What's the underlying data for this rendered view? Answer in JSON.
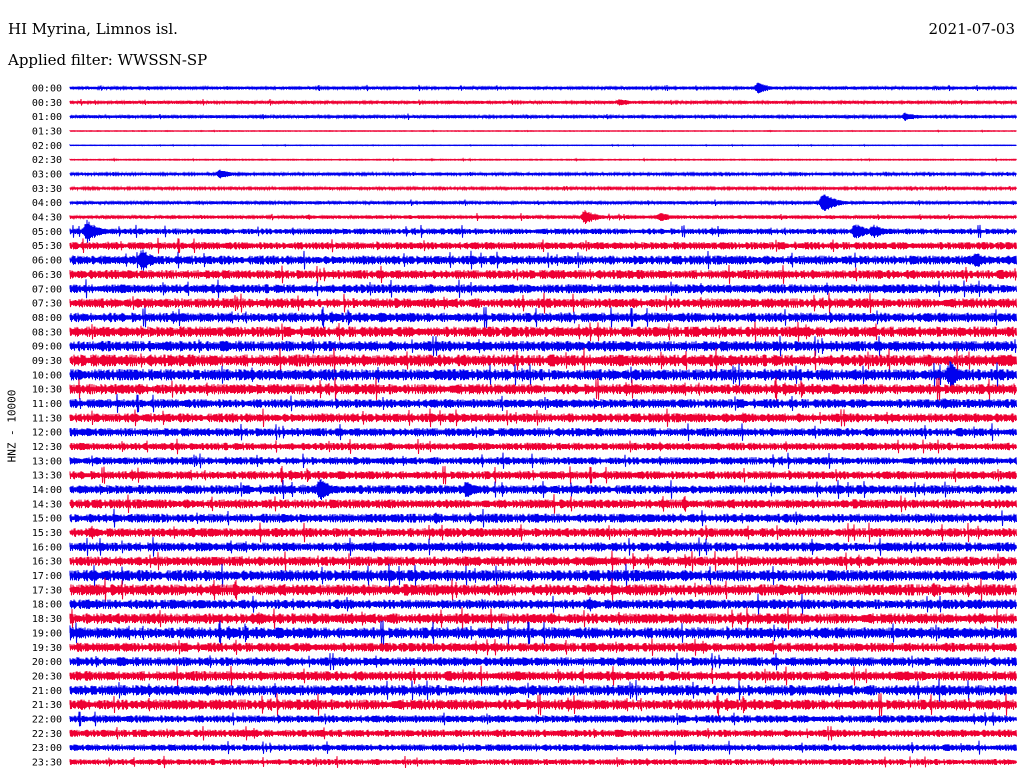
{
  "header": {
    "station": "HI Myrina, Limnos isl.",
    "date": "2021-07-03",
    "filter": "Applied filter: WWSSN-SP"
  },
  "chart_data": {
    "type": "line",
    "title": "HI Myrina, Limnos isl.",
    "ylabel": "HNZ - 10000",
    "colors": [
      "#0000ee",
      "#ee0033"
    ],
    "time_labels": [
      "00:00",
      "00:30",
      "01:00",
      "01:30",
      "02:00",
      "02:30",
      "03:00",
      "03:30",
      "04:00",
      "04:30",
      "05:00",
      "05:30",
      "06:00",
      "06:30",
      "07:00",
      "07:30",
      "08:00",
      "08:30",
      "09:00",
      "09:30",
      "10:00",
      "10:30",
      "11:00",
      "11:30",
      "12:00",
      "12:30",
      "13:00",
      "13:30",
      "14:00",
      "14:30",
      "15:00",
      "15:30",
      "16:00",
      "16:30",
      "17:00",
      "17:30",
      "18:00",
      "18:30",
      "19:00",
      "19:30",
      "20:00",
      "20:30",
      "21:00",
      "21:30",
      "22:00",
      "22:30",
      "23:00",
      "23:30"
    ],
    "noise_level": [
      1,
      1,
      1,
      0.2,
      0.2,
      0.3,
      0.8,
      0.8,
      1,
      1.2,
      2,
      2.5,
      3,
      3,
      3,
      3.2,
      3.2,
      3.5,
      3.5,
      4,
      3.8,
      3.5,
      3,
      3,
      2.8,
      2.5,
      2.5,
      2.8,
      3,
      3,
      3,
      3,
      3,
      3.2,
      3.8,
      3.8,
      3.2,
      3.5,
      3.8,
      3,
      3,
      3.2,
      3.5,
      3.5,
      2.5,
      2.5,
      2.2,
      2
    ],
    "events": [
      {
        "row": 0,
        "x": 758,
        "amp": 6
      },
      {
        "row": 1,
        "x": 620,
        "amp": 4
      },
      {
        "row": 2,
        "x": 905,
        "amp": 5
      },
      {
        "row": 6,
        "x": 220,
        "amp": 5
      },
      {
        "row": 8,
        "x": 823,
        "amp": 11
      },
      {
        "row": 9,
        "x": 585,
        "amp": 8
      },
      {
        "row": 9,
        "x": 660,
        "amp": 5
      },
      {
        "row": 10,
        "x": 87,
        "amp": 12
      },
      {
        "row": 10,
        "x": 855,
        "amp": 9
      },
      {
        "row": 10,
        "x": 873,
        "amp": 8
      },
      {
        "row": 12,
        "x": 142,
        "amp": 12
      },
      {
        "row": 12,
        "x": 975,
        "amp": 9
      },
      {
        "row": 20,
        "x": 950,
        "amp": 14
      },
      {
        "row": 20,
        "x": 822,
        "amp": 7
      },
      {
        "row": 22,
        "x": 944,
        "amp": 6
      },
      {
        "row": 23,
        "x": 743,
        "amp": 6
      },
      {
        "row": 28,
        "x": 320,
        "amp": 13
      },
      {
        "row": 28,
        "x": 466,
        "amp": 9
      },
      {
        "row": 28,
        "x": 285,
        "amp": 5
      },
      {
        "row": 37,
        "x": 258,
        "amp": 7
      },
      {
        "row": 37,
        "x": 980,
        "amp": 6
      }
    ],
    "gaps": [
      {
        "row": 4,
        "x0": 230,
        "x1": 262
      }
    ]
  }
}
